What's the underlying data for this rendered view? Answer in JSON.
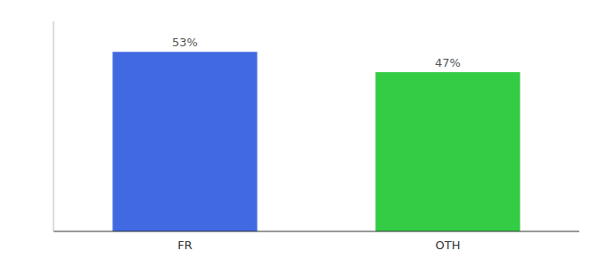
{
  "chart_data": {
    "type": "bar",
    "categories": [
      "FR",
      "OTH"
    ],
    "values": [
      53,
      47
    ],
    "value_labels": [
      "53%",
      "47%"
    ],
    "colors": [
      "#4169e1",
      "#33cc44"
    ],
    "ylim": [
      0,
      62
    ],
    "data_labels": true,
    "tick_labels": "x"
  }
}
